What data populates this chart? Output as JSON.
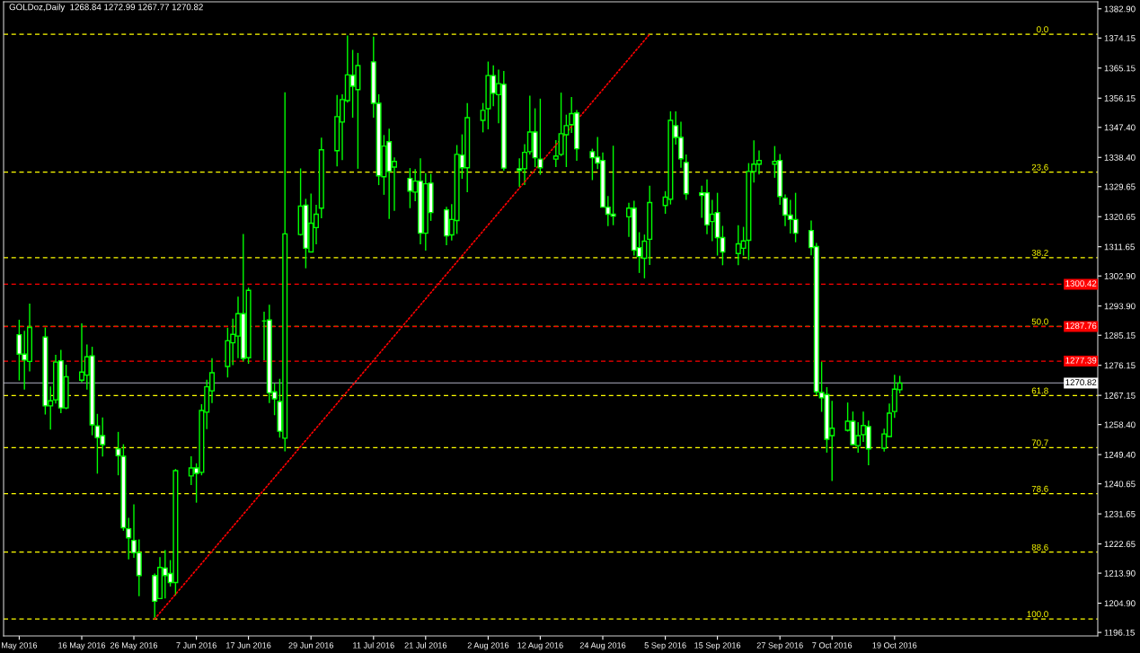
{
  "chart_data": {
    "type": "candlestick",
    "title": "GOLDoz,Daily  1268.84 1272.99 1267.77 1270.82",
    "x": [
      "2016-05-04",
      "2016-05-05",
      "2016-05-06",
      "2016-05-09",
      "2016-05-10",
      "2016-05-11",
      "2016-05-12",
      "2016-05-13",
      "2016-05-16",
      "2016-05-17",
      "2016-05-18",
      "2016-05-19",
      "2016-05-20",
      "2016-05-23",
      "2016-05-24",
      "2016-05-25",
      "2016-05-26",
      "2016-05-27",
      "2016-05-30",
      "2016-05-31",
      "2016-06-01",
      "2016-06-02",
      "2016-06-03",
      "2016-06-06",
      "2016-06-07",
      "2016-06-08",
      "2016-06-09",
      "2016-06-10",
      "2016-06-13",
      "2016-06-14",
      "2016-06-15",
      "2016-06-16",
      "2016-06-17",
      "2016-06-20",
      "2016-06-21",
      "2016-06-22",
      "2016-06-23",
      "2016-06-24",
      "2016-06-27",
      "2016-06-28",
      "2016-06-29",
      "2016-06-30",
      "2016-07-01",
      "2016-07-04",
      "2016-07-05",
      "2016-07-06",
      "2016-07-07",
      "2016-07-08",
      "2016-07-11",
      "2016-07-12",
      "2016-07-13",
      "2016-07-14",
      "2016-07-15",
      "2016-07-18",
      "2016-07-19",
      "2016-07-20",
      "2016-07-21",
      "2016-07-22",
      "2016-07-25",
      "2016-07-26",
      "2016-07-27",
      "2016-07-28",
      "2016-07-29",
      "2016-08-01",
      "2016-08-02",
      "2016-08-03",
      "2016-08-04",
      "2016-08-05",
      "2016-08-08",
      "2016-08-09",
      "2016-08-10",
      "2016-08-11",
      "2016-08-12",
      "2016-08-15",
      "2016-08-16",
      "2016-08-17",
      "2016-08-18",
      "2016-08-19",
      "2016-08-22",
      "2016-08-23",
      "2016-08-24",
      "2016-08-25",
      "2016-08-26",
      "2016-08-29",
      "2016-08-30",
      "2016-08-31",
      "2016-09-01",
      "2016-09-02",
      "2016-09-05",
      "2016-09-06",
      "2016-09-07",
      "2016-09-08",
      "2016-09-09",
      "2016-09-12",
      "2016-09-13",
      "2016-09-14",
      "2016-09-15",
      "2016-09-16",
      "2016-09-19",
      "2016-09-20",
      "2016-09-21",
      "2016-09-22",
      "2016-09-23",
      "2016-09-26",
      "2016-09-27",
      "2016-09-28",
      "2016-09-29",
      "2016-09-30",
      "2016-10-03",
      "2016-10-04",
      "2016-10-05",
      "2016-10-06",
      "2016-10-07",
      "2016-10-10",
      "2016-10-11",
      "2016-10-12",
      "2016-10-13",
      "2016-10-14",
      "2016-10-17",
      "2016-10-18",
      "2016-10-19",
      "2016-10-20"
    ],
    "series": [
      {
        "type": "candlestick",
        "color": "#00ff00",
        "ohlc": [
          [
            1285.3,
            1289.8,
            1271.6,
            1279.5
          ],
          [
            1279.5,
            1286.5,
            1268.9,
            1277.7
          ],
          [
            1277.3,
            1294.6,
            1274.3,
            1287.5
          ],
          [
            1284.6,
            1287.5,
            1261.4,
            1264.0
          ],
          [
            1264.0,
            1269.8,
            1256.9,
            1265.5
          ],
          [
            1265.8,
            1279.3,
            1264.7,
            1277.1
          ],
          [
            1277.5,
            1280.8,
            1261.8,
            1263.4
          ],
          [
            1263.4,
            1276.3,
            1263.0,
            1272.7
          ],
          [
            1271.7,
            1288.7,
            1271.0,
            1274.1
          ],
          [
            1273.2,
            1282.4,
            1268.9,
            1278.7
          ],
          [
            1279.0,
            1281.7,
            1255.2,
            1258.3
          ],
          [
            1258.0,
            1261.6,
            1243.7,
            1254.5
          ],
          [
            1255.1,
            1260.5,
            1248.8,
            1252.4
          ],
          [
            1251.1,
            1256.2,
            1243.2,
            1249.1
          ],
          [
            1248.9,
            1252.5,
            1226.6,
            1227.5
          ],
          [
            1227.2,
            1230.5,
            1218.0,
            1224.5
          ],
          [
            1223.7,
            1234.5,
            1218.5,
            1220.0
          ],
          [
            1220.0,
            1224.0,
            1207.0,
            1213.2
          ],
          [
            1213.2,
            1213.8,
            1200.4,
            1205.5
          ],
          [
            1206.3,
            1218.7,
            1206.3,
            1215.6
          ],
          [
            1215.4,
            1220.8,
            1206.3,
            1213.2
          ],
          [
            1213.8,
            1217.8,
            1209.9,
            1211.1
          ],
          [
            1211.1,
            1245.1,
            1207.2,
            1244.6
          ],
          [
            1243.0,
            1248.9,
            1240.3,
            1245.4
          ],
          [
            1245.4,
            1246.8,
            1235.0,
            1243.8
          ],
          [
            1244.1,
            1264.5,
            1243.2,
            1262.6
          ],
          [
            1262.1,
            1271.8,
            1257.0,
            1269.7
          ],
          [
            1268.5,
            1278.3,
            1264.8,
            1273.9
          ],
          [
            1275.8,
            1287.4,
            1272.5,
            1283.5
          ],
          [
            1282.9,
            1290.1,
            1276.2,
            1285.4
          ],
          [
            1284.9,
            1296.7,
            1278.3,
            1291.6
          ],
          [
            1291.6,
            1315.5,
            1277.3,
            1278.2
          ],
          [
            1278.4,
            1299.4,
            1276.6,
            1298.6
          ],
          [
            1289.4,
            1292.2,
            1277.7,
            1289.4
          ],
          [
            1289.7,
            1294.3,
            1264.8,
            1267.9
          ],
          [
            1268.2,
            1270.7,
            1261.2,
            1266.1
          ],
          [
            1265.3,
            1272.1,
            1254.5,
            1256.4
          ],
          [
            1254.3,
            1357.9,
            1250.4,
            1315.5
          ],
          [
            1315.3,
            1335.1,
            1315.0,
            1323.8
          ],
          [
            1324.1,
            1326.0,
            1305.2,
            1311.2
          ],
          [
            1310.1,
            1327.6,
            1310.1,
            1318.7
          ],
          [
            1317.4,
            1324.2,
            1312.4,
            1321.4
          ],
          [
            1323.2,
            1344.3,
            1320.2,
            1340.7
          ],
          [
            1340.4,
            1357.1,
            1335.7,
            1350.6
          ],
          [
            1349.0,
            1357.3,
            1337.6,
            1355.7
          ],
          [
            1355.4,
            1374.9,
            1354.8,
            1363.1
          ],
          [
            1363.0,
            1370.6,
            1350.3,
            1359.7
          ],
          [
            1358.7,
            1369.7,
            1335.0,
            1365.9
          ],
          [
            1367.0,
            1374.6,
            1350.3,
            1354.6
          ],
          [
            1354.6,
            1357.3,
            1330.1,
            1332.9
          ],
          [
            1332.6,
            1345.1,
            1327.2,
            1341.8
          ],
          [
            1343.1,
            1347.0,
            1320.0,
            1334.2
          ],
          [
            1335.5,
            1338.4,
            1322.4,
            1337.2
          ],
          [
            1332.1,
            1335.2,
            1323.2,
            1328.3
          ],
          [
            1328.0,
            1334.9,
            1325.3,
            1331.3
          ],
          [
            1331.3,
            1338.1,
            1312.4,
            1315.7
          ],
          [
            1315.7,
            1333.7,
            1310.5,
            1330.5
          ],
          [
            1330.7,
            1333.5,
            1319.4,
            1321.9
          ],
          [
            1322.7,
            1323.6,
            1312.1,
            1314.9
          ],
          [
            1315.2,
            1324.4,
            1313.5,
            1319.8
          ],
          [
            1319.5,
            1342.1,
            1315.5,
            1339.3
          ],
          [
            1339.1,
            1345.3,
            1332.0,
            1335.3
          ],
          [
            1335.3,
            1354.7,
            1328.0,
            1350.3
          ],
          [
            1349.5,
            1354.7,
            1345.9,
            1352.5
          ],
          [
            1353.0,
            1367.1,
            1346.8,
            1362.9
          ],
          [
            1362.9,
            1366.0,
            1353.7,
            1357.6
          ],
          [
            1357.2,
            1364.7,
            1348.6,
            1360.5
          ],
          [
            1360.3,
            1364.3,
            1334.4,
            1335.2
          ],
          [
            1335.0,
            1338.1,
            1329.6,
            1334.5
          ],
          [
            1335.0,
            1342.4,
            1330.1,
            1339.9
          ],
          [
            1340.1,
            1356.9,
            1339.3,
            1346.0
          ],
          [
            1346.0,
            1353.1,
            1335.5,
            1338.3
          ],
          [
            1337.9,
            1356.0,
            1333.2,
            1335.3
          ],
          [
            1337.9,
            1343.6,
            1335.5,
            1338.8
          ],
          [
            1339.3,
            1357.8,
            1338.8,
            1345.5
          ],
          [
            1345.2,
            1351.2,
            1335.5,
            1347.9
          ],
          [
            1348.2,
            1356.5,
            1345.7,
            1351.5
          ],
          [
            1351.7,
            1352.6,
            1337.4,
            1341.0
          ],
          [
            1340.1,
            1341.0,
            1331.6,
            1338.3
          ],
          [
            1338.5,
            1344.5,
            1334.9,
            1336.7
          ],
          [
            1337.5,
            1339.9,
            1323.5,
            1323.5
          ],
          [
            1323.5,
            1326.8,
            1317.8,
            1321.4
          ],
          [
            1321.4,
            1341.9,
            1318.1,
            1320.8
          ],
          [
            1320.6,
            1324.8,
            1314.6,
            1323.2
          ],
          [
            1323.2,
            1325.4,
            1309.0,
            1310.6
          ],
          [
            1311.4,
            1316.0,
            1303.8,
            1308.7
          ],
          [
            1308.2,
            1315.3,
            1302.2,
            1313.3
          ],
          [
            1313.9,
            1329.9,
            1306.2,
            1324.9
          ],
          [
            1324.0,
            1328.3,
            1321.5,
            1326.5
          ],
          [
            1325.9,
            1352.2,
            1324.3,
            1349.5
          ],
          [
            1347.9,
            1352.2,
            1342.2,
            1344.4
          ],
          [
            1344.4,
            1349.1,
            1335.3,
            1338.0
          ],
          [
            1336.9,
            1339.3,
            1325.7,
            1327.5
          ],
          [
            1327.8,
            1329.9,
            1320.3,
            1327.0
          ],
          [
            1327.8,
            1331.8,
            1315.4,
            1318.2
          ],
          [
            1319.2,
            1325.7,
            1313.3,
            1321.4
          ],
          [
            1321.9,
            1327.8,
            1309.0,
            1314.4
          ],
          [
            1314.4,
            1317.9,
            1306.1,
            1310.1
          ],
          [
            1309.6,
            1318.1,
            1306.1,
            1312.5
          ],
          [
            1311.2,
            1317.6,
            1309.0,
            1313.4
          ],
          [
            1313.6,
            1336.7,
            1307.7,
            1334.2
          ],
          [
            1334.2,
            1343.5,
            1330.9,
            1336.4
          ],
          [
            1336.4,
            1340.5,
            1333.3,
            1337.5
          ],
          [
            1336.4,
            1341.8,
            1332.3,
            1337.2
          ],
          [
            1337.5,
            1339.4,
            1324.2,
            1326.7
          ],
          [
            1326.2,
            1327.3,
            1317.8,
            1321.1
          ],
          [
            1321.1,
            1325.7,
            1315.6,
            1319.8
          ],
          [
            1319.8,
            1327.8,
            1313.0,
            1315.7
          ],
          [
            1316.5,
            1319.5,
            1309.1,
            1311.4
          ],
          [
            1311.7,
            1312.8,
            1267.2,
            1268.2
          ],
          [
            1268.0,
            1277.2,
            1262.2,
            1266.4
          ],
          [
            1267.4,
            1269.6,
            1250.0,
            1254.0
          ],
          [
            1255.1,
            1265.5,
            1241.5,
            1257.3
          ],
          [
            1256.7,
            1265.0,
            1256.3,
            1259.4
          ],
          [
            1259.4,
            1262.3,
            1252.4,
            1252.4
          ],
          [
            1252.1,
            1259.1,
            1250.0,
            1255.1
          ],
          [
            1255.4,
            1262.3,
            1253.2,
            1258.1
          ],
          [
            1257.8,
            1259.6,
            1246.2,
            1251.1
          ],
          [
            1251.3,
            1257.2,
            1250.3,
            1255.6
          ],
          [
            1254.8,
            1264.7,
            1254.8,
            1261.8
          ],
          [
            1262.3,
            1273.3,
            1260.4,
            1269.0
          ],
          [
            1268.84,
            1272.99,
            1267.77,
            1270.82
          ]
        ]
      },
      {
        "type": "line",
        "x": [
          "2016-05-30",
          "2016-09-02"
        ],
        "values": [
          1200.2,
          1375.3
        ],
        "color": "#ff0000",
        "line_style": "dotted"
      }
    ],
    "ylim": [
      1195.1,
      1385.0
    ],
    "yticks": [
      {
        "value": 1382.9,
        "label": "1382.90"
      },
      1374.15,
      1365.15,
      1356.15,
      {
        "value": 1347.4,
        "label": "1347.40"
      },
      {
        "value": 1338.4,
        "label": "1338.40"
      },
      1329.65,
      1320.65,
      1311.65,
      {
        "value": 1302.9,
        "label": "1302.90"
      },
      {
        "value": 1293.9,
        "label": "1293.90"
      },
      1285.15,
      1276.15,
      1267.15,
      {
        "value": 1258.4,
        "label": "1258.40"
      },
      {
        "value": 1249.4,
        "label": "1249.40"
      },
      1240.65,
      1231.65,
      1222.65,
      {
        "value": 1213.9,
        "label": "1213.90"
      },
      {
        "value": 1204.9,
        "label": "1204.90"
      },
      1196.15
    ],
    "xticks": [
      {
        "value": "2016-05-04",
        "label": "May 2016"
      },
      {
        "value": "2016-05-16",
        "label": "16 May 2016"
      },
      {
        "value": "2016-05-26",
        "label": "26 May 2016"
      },
      {
        "value": "2016-06-07",
        "label": "7 Jun 2016"
      },
      {
        "value": "2016-06-17",
        "label": "17 Jun 2016"
      },
      {
        "value": "2016-06-29",
        "label": "29 Jun 2016"
      },
      {
        "value": "2016-07-11",
        "label": "11 Jul 2016"
      },
      {
        "value": "2016-07-21",
        "label": "21 Jul 2016"
      },
      {
        "value": "2016-08-02",
        "label": "2 Aug 2016"
      },
      {
        "value": "2016-08-12",
        "label": "12 Aug 2016"
      },
      {
        "value": "2016-08-24",
        "label": "24 Aug 2016"
      },
      {
        "value": "2016-09-05",
        "label": "5 Sep 2016"
      },
      {
        "value": "2016-09-15",
        "label": "15 Sep 2016"
      },
      {
        "value": "2016-09-27",
        "label": "27 Sep 2016"
      },
      {
        "value": "2016-10-07",
        "label": "7 Oct 2016"
      },
      {
        "value": "2016-10-19",
        "label": "19 Oct 2016"
      }
    ],
    "xlim": [
      "2016-05-01",
      "2016-11-27"
    ],
    "annotations": [
      {
        "text": "0.0",
        "y": 1375.3
      },
      {
        "text": "23.6",
        "y": 1334.0
      },
      {
        "text": "38.2",
        "y": 1308.4
      },
      {
        "text": "50.0",
        "y": 1287.8
      },
      {
        "text": "61.8",
        "y": 1267.1
      },
      {
        "text": "70.7",
        "y": 1251.5
      },
      {
        "text": "78.6",
        "y": 1237.7
      },
      {
        "text": "88.6",
        "y": 1220.2
      },
      {
        "text": "100.0",
        "y": 1200.2
      }
    ],
    "ref_lines": [
      {
        "axis": "y",
        "value": 1375.3,
        "color": "#ffff00",
        "line_style": "dashed"
      },
      {
        "axis": "y",
        "value": 1334.0,
        "color": "#ffff00",
        "line_style": "dashed"
      },
      {
        "axis": "y",
        "value": 1308.4,
        "color": "#ffff00",
        "line_style": "dashed"
      },
      {
        "axis": "y",
        "value": 1287.8,
        "color": "#ffff00",
        "line_style": "dashed"
      },
      {
        "axis": "y",
        "value": 1267.1,
        "color": "#ffff00",
        "line_style": "dashed"
      },
      {
        "axis": "y",
        "value": 1251.5,
        "color": "#ffff00",
        "line_style": "dashed"
      },
      {
        "axis": "y",
        "value": 1237.7,
        "color": "#ffff00",
        "line_style": "dashed"
      },
      {
        "axis": "y",
        "value": 1220.2,
        "color": "#ffff00",
        "line_style": "dashed"
      },
      {
        "axis": "y",
        "value": 1200.2,
        "color": "#ffff00",
        "line_style": "dashed"
      },
      {
        "axis": "y",
        "value": 1300.42,
        "label": "1300.42",
        "color": "#ff0000",
        "line_style": "dashed"
      },
      {
        "axis": "y",
        "value": 1287.76,
        "label": "1287.76",
        "color": "#ff0000",
        "line_style": "dashed"
      },
      {
        "axis": "y",
        "value": 1277.39,
        "label": "1277.39",
        "color": "#ff0000",
        "line_style": "dashed"
      },
      {
        "axis": "y",
        "value": 1270.82,
        "label": "1270.82",
        "color": "#8a8a9a",
        "line_style": "solid"
      }
    ]
  }
}
